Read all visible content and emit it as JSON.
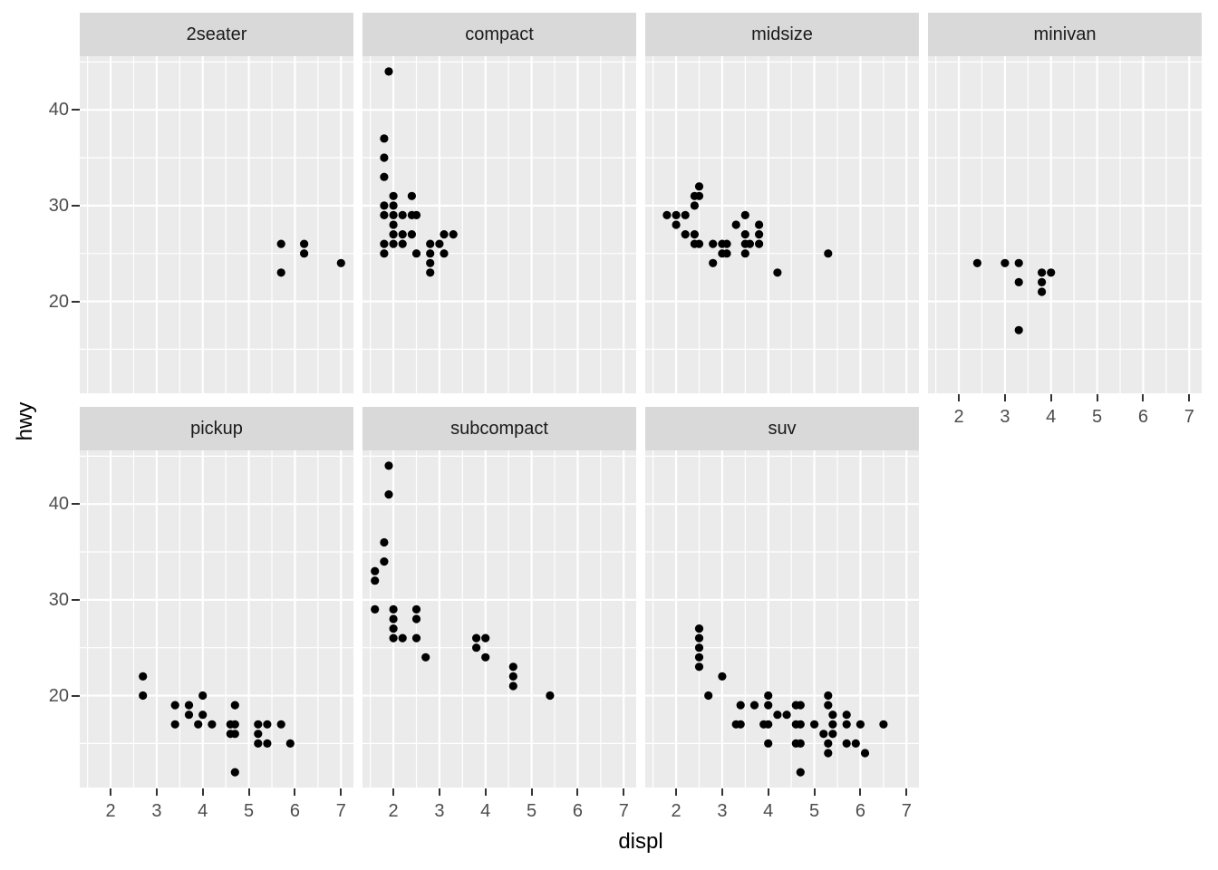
{
  "chart_data": {
    "type": "scatter",
    "xlabel": "displ",
    "ylabel": "hwy",
    "x_ticks": [
      2,
      3,
      4,
      5,
      6,
      7
    ],
    "y_ticks": [
      20,
      30,
      40
    ],
    "x_minor": [
      1.5,
      2.5,
      3.5,
      4.5,
      5.5,
      6.5
    ],
    "y_minor": [
      15,
      25,
      35,
      45
    ],
    "xlim": [
      1.33,
      7.27
    ],
    "ylim": [
      10.4,
      45.6
    ],
    "grid": "on",
    "legend": "none",
    "point_color": "#000000",
    "panel_bg": "#EBEBEB",
    "strip_bg": "#D9D9D9",
    "grid_color": "#FFFFFF",
    "tick_mark_color": "#333333",
    "tick_label_color": "#4D4D4D",
    "strip_text_color": "#1A1A1A",
    "facets": [
      {
        "label": "2seater",
        "row": 0,
        "col": 0,
        "x_axis": false,
        "points": [
          [
            5.7,
            26
          ],
          [
            5.7,
            23
          ],
          [
            6.2,
            26
          ],
          [
            6.2,
            25
          ],
          [
            7.0,
            24
          ]
        ]
      },
      {
        "label": "compact",
        "row": 0,
        "col": 1,
        "x_axis": false,
        "points": [
          [
            1.9,
            44
          ],
          [
            1.8,
            37
          ],
          [
            1.8,
            35
          ],
          [
            1.8,
            33
          ],
          [
            2.0,
            31
          ],
          [
            2.4,
            31
          ],
          [
            1.8,
            30
          ],
          [
            2.0,
            30
          ],
          [
            1.8,
            29
          ],
          [
            2.0,
            29
          ],
          [
            2.2,
            29
          ],
          [
            2.4,
            29
          ],
          [
            2.5,
            29
          ],
          [
            2.0,
            28
          ],
          [
            2.0,
            27
          ],
          [
            2.2,
            27
          ],
          [
            2.4,
            27
          ],
          [
            3.1,
            27
          ],
          [
            3.3,
            27
          ],
          [
            1.8,
            26
          ],
          [
            2.0,
            26
          ],
          [
            2.2,
            26
          ],
          [
            2.8,
            26
          ],
          [
            3.0,
            26
          ],
          [
            1.8,
            25
          ],
          [
            2.5,
            25
          ],
          [
            2.8,
            25
          ],
          [
            3.1,
            25
          ],
          [
            2.8,
            24
          ],
          [
            2.8,
            23
          ]
        ]
      },
      {
        "label": "midsize",
        "row": 0,
        "col": 2,
        "x_axis": false,
        "points": [
          [
            2.5,
            32
          ],
          [
            2.4,
            31
          ],
          [
            2.5,
            31
          ],
          [
            2.4,
            30
          ],
          [
            1.8,
            29
          ],
          [
            2.0,
            29
          ],
          [
            2.2,
            29
          ],
          [
            3.5,
            29
          ],
          [
            2.0,
            28
          ],
          [
            3.3,
            28
          ],
          [
            3.8,
            28
          ],
          [
            2.2,
            27
          ],
          [
            2.4,
            27
          ],
          [
            3.5,
            27
          ],
          [
            3.8,
            27
          ],
          [
            2.4,
            26
          ],
          [
            2.5,
            26
          ],
          [
            2.8,
            26
          ],
          [
            3.0,
            26
          ],
          [
            3.1,
            26
          ],
          [
            3.5,
            26
          ],
          [
            3.6,
            26
          ],
          [
            3.8,
            26
          ],
          [
            3.0,
            25
          ],
          [
            3.1,
            25
          ],
          [
            3.5,
            25
          ],
          [
            5.3,
            25
          ],
          [
            2.8,
            24
          ],
          [
            4.2,
            23
          ]
        ]
      },
      {
        "label": "minivan",
        "row": 0,
        "col": 3,
        "x_axis": true,
        "points": [
          [
            2.4,
            24
          ],
          [
            3.0,
            24
          ],
          [
            3.3,
            24
          ],
          [
            3.8,
            23
          ],
          [
            4.0,
            23
          ],
          [
            3.3,
            22
          ],
          [
            3.8,
            22
          ],
          [
            3.8,
            21
          ],
          [
            3.3,
            17
          ]
        ]
      },
      {
        "label": "pickup",
        "row": 1,
        "col": 0,
        "x_axis": true,
        "points": [
          [
            2.7,
            22
          ],
          [
            2.7,
            20
          ],
          [
            4.0,
            20
          ],
          [
            3.4,
            19
          ],
          [
            3.7,
            19
          ],
          [
            4.7,
            19
          ],
          [
            3.7,
            18
          ],
          [
            4.0,
            18
          ],
          [
            3.4,
            17
          ],
          [
            3.9,
            17
          ],
          [
            4.2,
            17
          ],
          [
            4.6,
            17
          ],
          [
            4.7,
            17
          ],
          [
            5.2,
            17
          ],
          [
            5.4,
            17
          ],
          [
            5.7,
            17
          ],
          [
            4.6,
            16
          ],
          [
            4.7,
            16
          ],
          [
            5.2,
            16
          ],
          [
            5.2,
            15
          ],
          [
            5.4,
            15
          ],
          [
            5.9,
            15
          ],
          [
            4.7,
            12
          ]
        ]
      },
      {
        "label": "subcompact",
        "row": 1,
        "col": 1,
        "x_axis": true,
        "points": [
          [
            1.9,
            44
          ],
          [
            1.9,
            41
          ],
          [
            1.8,
            36
          ],
          [
            1.8,
            34
          ],
          [
            1.6,
            33
          ],
          [
            1.6,
            32
          ],
          [
            1.6,
            29
          ],
          [
            2.0,
            29
          ],
          [
            2.5,
            29
          ],
          [
            2.0,
            28
          ],
          [
            2.5,
            28
          ],
          [
            2.0,
            27
          ],
          [
            2.0,
            26
          ],
          [
            2.2,
            26
          ],
          [
            2.5,
            26
          ],
          [
            2.7,
            24
          ],
          [
            3.8,
            26
          ],
          [
            4.0,
            26
          ],
          [
            3.8,
            25
          ],
          [
            4.0,
            24
          ],
          [
            4.6,
            23
          ],
          [
            4.6,
            22
          ],
          [
            4.6,
            21
          ],
          [
            5.4,
            20
          ]
        ]
      },
      {
        "label": "suv",
        "row": 1,
        "col": 2,
        "x_axis": true,
        "points": [
          [
            2.5,
            27
          ],
          [
            2.5,
            26
          ],
          [
            2.5,
            25
          ],
          [
            2.5,
            24
          ],
          [
            2.5,
            23
          ],
          [
            3.0,
            22
          ],
          [
            2.7,
            20
          ],
          [
            4.0,
            20
          ],
          [
            5.3,
            20
          ],
          [
            3.4,
            19
          ],
          [
            3.7,
            19
          ],
          [
            4.0,
            19
          ],
          [
            4.6,
            19
          ],
          [
            4.7,
            19
          ],
          [
            5.3,
            19
          ],
          [
            4.2,
            18
          ],
          [
            4.4,
            18
          ],
          [
            5.4,
            18
          ],
          [
            5.7,
            18
          ],
          [
            3.3,
            17
          ],
          [
            3.4,
            17
          ],
          [
            3.9,
            17
          ],
          [
            4.0,
            17
          ],
          [
            4.6,
            17
          ],
          [
            4.7,
            17
          ],
          [
            5.0,
            17
          ],
          [
            5.4,
            17
          ],
          [
            5.7,
            17
          ],
          [
            6.0,
            17
          ],
          [
            6.5,
            17
          ],
          [
            5.2,
            16
          ],
          [
            5.4,
            16
          ],
          [
            4.0,
            15
          ],
          [
            4.6,
            15
          ],
          [
            4.7,
            15
          ],
          [
            5.3,
            15
          ],
          [
            5.7,
            15
          ],
          [
            5.9,
            15
          ],
          [
            5.3,
            14
          ],
          [
            6.1,
            14
          ],
          [
            4.7,
            12
          ]
        ]
      }
    ]
  }
}
